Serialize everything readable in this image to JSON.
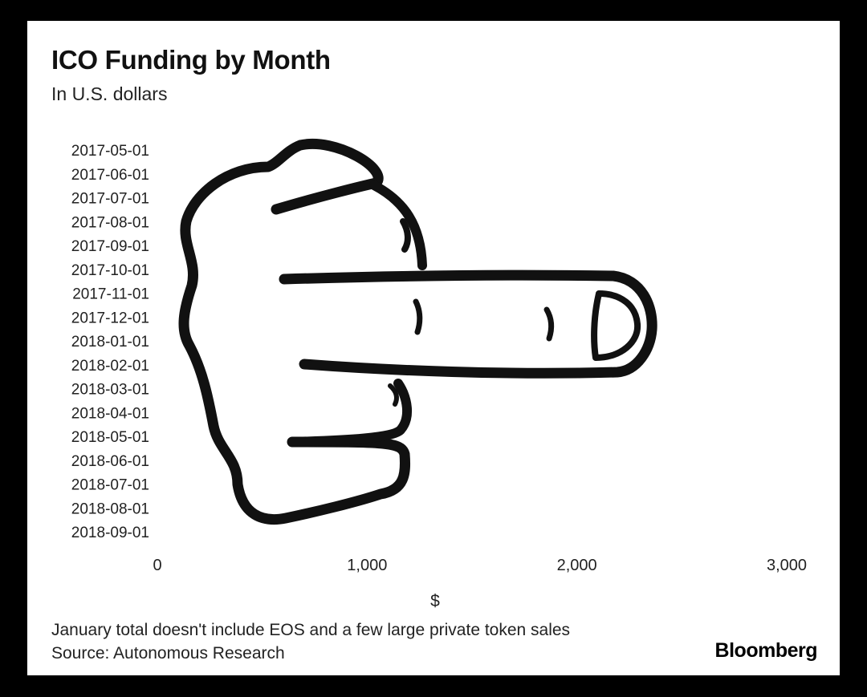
{
  "chart_data": {
    "type": "bar",
    "orientation": "horizontal",
    "title": "ICO Funding by Month",
    "subtitle": "In U.S. dollars",
    "xlabel": "$",
    "ylabel": "",
    "categories": [
      "2017-05-01",
      "2017-06-01",
      "2017-07-01",
      "2017-08-01",
      "2017-09-01",
      "2017-10-01",
      "2017-11-01",
      "2017-12-01",
      "2018-01-01",
      "2018-02-01",
      "2018-03-01",
      "2018-04-01",
      "2018-05-01",
      "2018-06-01",
      "2018-07-01",
      "2018-08-01",
      "2018-09-01"
    ],
    "values": [
      null,
      null,
      null,
      null,
      null,
      null,
      null,
      null,
      null,
      null,
      null,
      null,
      null,
      null,
      null,
      null,
      null
    ],
    "xlim": [
      0,
      3000
    ],
    "x_ticks": [
      0,
      1000,
      2000,
      3000
    ],
    "x_tick_labels": [
      "0",
      "1,000",
      "2,000",
      "3,000"
    ],
    "grid": false,
    "legend": "none",
    "note": "January total doesn't include EOS and a few large private token sales",
    "source": "Source: Autonomous Research"
  },
  "brand": "Bloomberg",
  "colors": {
    "background": "#000000",
    "card": "#ffffff",
    "ink": "#111111"
  },
  "illustration_icon": "middle-finger-hand-icon"
}
